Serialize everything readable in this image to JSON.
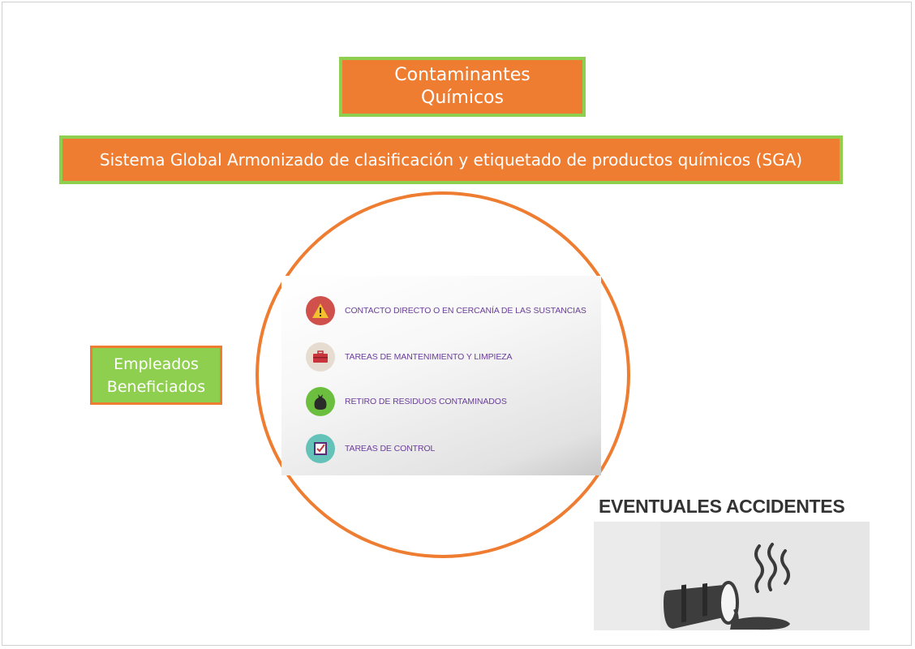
{
  "title": {
    "line1": "Contaminantes",
    "line2": "Químicos"
  },
  "sga": {
    "label": "Sistema Global Armonizado de clasificación y etiquetado de productos químicos (SGA)"
  },
  "employees": {
    "line1": "Empleados",
    "line2": "Beneficiados"
  },
  "tasks": [
    {
      "label": "CONTACTO DIRECTO O EN CERCANÍA DE LAS SUSTANCIAS",
      "icon": "warning-icon",
      "color": "#d0504c"
    },
    {
      "label": "TAREAS DE MANTENIMIENTO Y LIMPIEZA",
      "icon": "toolbox-icon",
      "color": "#e6dcd0"
    },
    {
      "label": "RETIRO DE RESIDUOS CONTAMINADOS",
      "icon": "trash-bag-icon",
      "color": "#6cbf3e"
    },
    {
      "label": "TAREAS DE CONTROL",
      "icon": "checkbox-icon",
      "color": "#64c2b8"
    }
  ],
  "accident": {
    "title": "EVENTUALES ACCIDENTES",
    "icon": "spilled-barrel-icon"
  },
  "colors": {
    "orange": "#ee7d31",
    "green": "#8fcf4f",
    "purple": "#6b3d9a"
  }
}
